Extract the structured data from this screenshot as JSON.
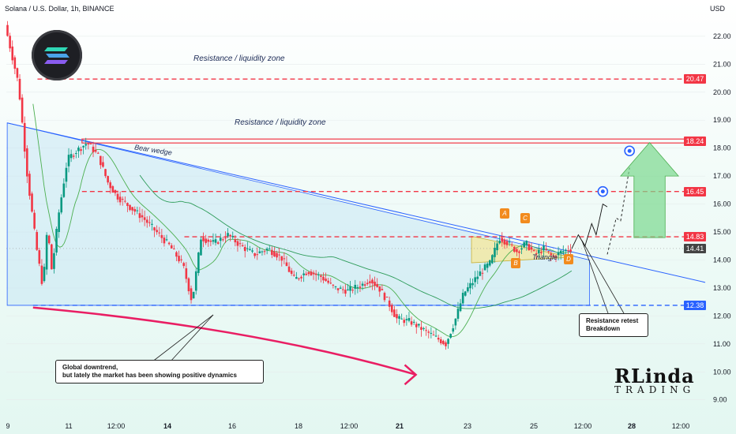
{
  "symbol": "Solana / U.S. Dollar, 1h, BINANCE",
  "currency": "USD",
  "chart_data": {
    "type": "candlestick",
    "x_ticks": [
      "9",
      "11",
      "12:00",
      "14",
      "16",
      "18",
      "12:00",
      "21",
      "23",
      "25",
      "12:00",
      "28",
      "12:00"
    ],
    "y_ticks": [
      9.0,
      10.0,
      11.0,
      12.0,
      13.0,
      14.0,
      15.0,
      16.0,
      17.0,
      18.0,
      19.0,
      20.0,
      21.0,
      22.0
    ],
    "ylim": [
      8.4,
      22.9
    ],
    "price_path": [
      {
        "t": 0,
        "p": 22.4
      },
      {
        "t": 3,
        "p": 20.3
      },
      {
        "t": 5,
        "p": 17.0
      },
      {
        "t": 7,
        "p": 14.5
      },
      {
        "t": 8.5,
        "p": 13.0
      },
      {
        "t": 9.5,
        "p": 15.2
      },
      {
        "t": 10.5,
        "p": 13.6
      },
      {
        "t": 12,
        "p": 15.6
      },
      {
        "t": 14,
        "p": 17.6
      },
      {
        "t": 16,
        "p": 17.9
      },
      {
        "t": 18.5,
        "p": 18.2
      },
      {
        "t": 21,
        "p": 17.7
      },
      {
        "t": 23,
        "p": 16.8
      },
      {
        "t": 25,
        "p": 16.3
      },
      {
        "t": 28,
        "p": 15.9
      },
      {
        "t": 31,
        "p": 15.5
      },
      {
        "t": 34,
        "p": 15.0
      },
      {
        "t": 37,
        "p": 14.5
      },
      {
        "t": 40,
        "p": 13.8
      },
      {
        "t": 42,
        "p": 12.5
      },
      {
        "t": 44,
        "p": 14.8
      },
      {
        "t": 47,
        "p": 14.6
      },
      {
        "t": 50,
        "p": 14.9
      },
      {
        "t": 53,
        "p": 14.5
      },
      {
        "t": 56,
        "p": 14.2
      },
      {
        "t": 59,
        "p": 14.4
      },
      {
        "t": 62,
        "p": 14.1
      },
      {
        "t": 65,
        "p": 13.3
      },
      {
        "t": 68,
        "p": 13.6
      },
      {
        "t": 71,
        "p": 13.4
      },
      {
        "t": 74,
        "p": 13.0
      },
      {
        "t": 77,
        "p": 12.9
      },
      {
        "t": 80,
        "p": 13.1
      },
      {
        "t": 82,
        "p": 13.3
      },
      {
        "t": 84,
        "p": 13.0
      },
      {
        "t": 86,
        "p": 12.5
      },
      {
        "t": 88,
        "p": 11.9
      },
      {
        "t": 91,
        "p": 11.8
      },
      {
        "t": 94,
        "p": 11.5
      },
      {
        "t": 97,
        "p": 11.2
      },
      {
        "t": 99,
        "p": 11.0
      },
      {
        "t": 101,
        "p": 11.8
      },
      {
        "t": 103,
        "p": 12.8
      },
      {
        "t": 105,
        "p": 13.2
      },
      {
        "t": 107,
        "p": 13.6
      },
      {
        "t": 109,
        "p": 13.9
      },
      {
        "t": 111,
        "p": 14.8
      },
      {
        "t": 113,
        "p": 14.6
      },
      {
        "t": 115,
        "p": 14.3
      },
      {
        "t": 117,
        "p": 14.6
      },
      {
        "t": 119,
        "p": 14.2
      },
      {
        "t": 121,
        "p": 14.4
      },
      {
        "t": 123,
        "p": 14.1
      },
      {
        "t": 125,
        "p": 14.3
      },
      {
        "t": 127,
        "p": 14.4
      }
    ],
    "t_max": 157,
    "horizontal_levels": [
      {
        "price": 20.47,
        "label": "20.47",
        "color": "#f23645",
        "style": "dashed"
      },
      {
        "price": 18.24,
        "label": "18.24",
        "color": "#f23645",
        "style": "solid"
      },
      {
        "price": 16.45,
        "label": "16.45",
        "color": "#f23645",
        "style": "dashed"
      },
      {
        "price": 14.83,
        "label": "14.83",
        "color": "#f23645",
        "style": "dashed"
      },
      {
        "price": 12.38,
        "label": "12.38",
        "color": "#2962ff",
        "style": "dashed"
      }
    ],
    "last_price": {
      "price": 14.41,
      "label": "14.41"
    },
    "annotations": {
      "resistance_top": "Resistance / liquidity zone",
      "resistance_mid": "Resistance / liquidity zone",
      "bear_wedge": "Bear wedge",
      "triangle": "Triangle",
      "points": [
        "A",
        "B",
        "C",
        "D"
      ]
    }
  },
  "callouts": {
    "downtrend_line1": "Global downtrend,",
    "downtrend_line2": "but lately the market has been showing positive dynamics",
    "retest_line1": "Resistance retest",
    "retest_line2": "Breakdown"
  },
  "brand": {
    "top": "RLinda",
    "bottom": "TRADING"
  },
  "colors": {
    "red": "#f23645",
    "blue": "#2962ff",
    "green": "#4caf50",
    "orange": "#f28b1e",
    "wedge_fill": "#bfe3f5"
  }
}
